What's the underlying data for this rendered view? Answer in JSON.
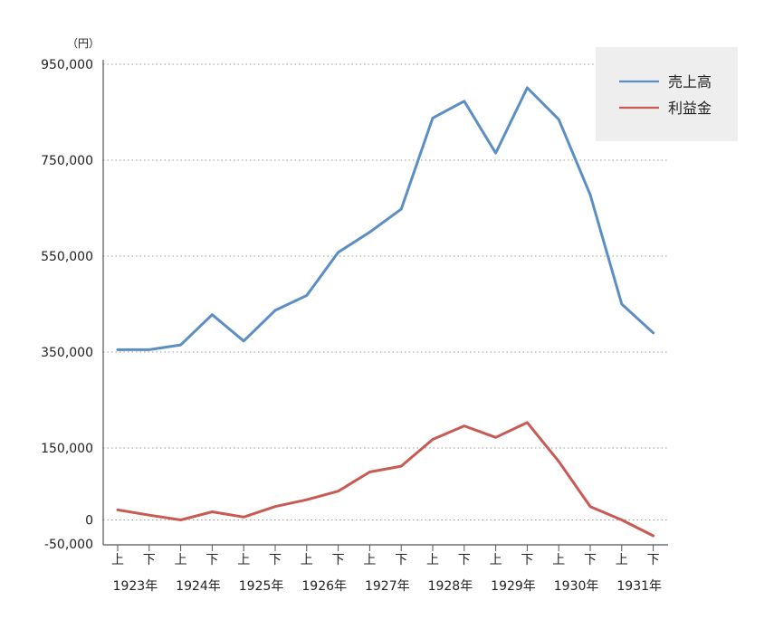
{
  "chart_data": {
    "type": "line",
    "y_unit": "（円）",
    "ylim": [
      -50000,
      950000
    ],
    "y_ticks": [
      950000,
      750000,
      550000,
      350000,
      150000,
      0,
      -50000
    ],
    "y_tick_labels": [
      "950,000",
      "750,000",
      "550,000",
      "350,000",
      "150,000",
      "0",
      "-50,000"
    ],
    "grid": true,
    "half_labels": [
      "上",
      "下",
      "上",
      "下",
      "上",
      "下",
      "上",
      "下",
      "上",
      "下",
      "上",
      "下",
      "上",
      "下",
      "上",
      "下",
      "上",
      "下"
    ],
    "years": [
      "1923年",
      "1924年",
      "1925年",
      "1926年",
      "1927年",
      "1928年",
      "1929年",
      "1930年",
      "1931年"
    ],
    "legend_position": "top-right",
    "series": [
      {
        "name": "売上高",
        "color": "#5b8ec4",
        "values": [
          355000,
          355000,
          365000,
          428000,
          373000,
          437000,
          468000,
          558000,
          600000,
          648000,
          838000,
          873000,
          765000,
          901000,
          835000,
          678000,
          450000,
          390000
        ]
      },
      {
        "name": "利益金",
        "color": "#c85a54",
        "values": [
          21000,
          10000,
          0,
          17000,
          6000,
          28000,
          42000,
          60000,
          100000,
          112000,
          168000,
          196000,
          172000,
          203000,
          122000,
          28000,
          0,
          -33000
        ]
      }
    ]
  }
}
